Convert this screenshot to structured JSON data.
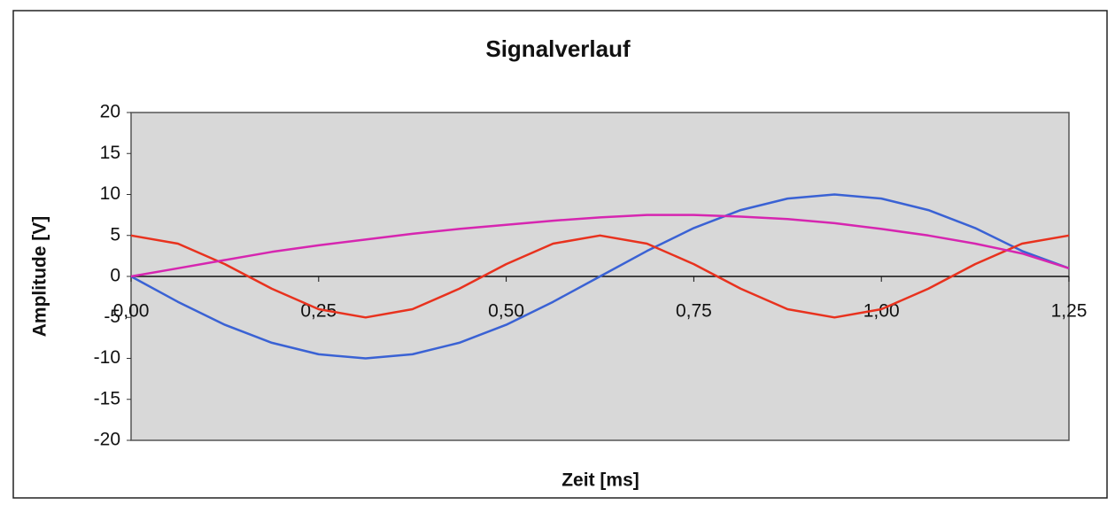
{
  "chart_data": {
    "type": "line",
    "title": "Signalverlauf",
    "x_label": "Zeit [ms]",
    "y_label": "Amplitude [V]",
    "x": [
      0,
      0.0625,
      0.125,
      0.1875,
      0.25,
      0.3125,
      0.375,
      0.4375,
      0.5,
      0.5625,
      0.625,
      0.6875,
      0.75,
      0.8125,
      0.875,
      0.9375,
      1.0,
      1.0625,
      1.125,
      1.1875,
      1.25
    ],
    "series": [
      {
        "color": "#3a62d4",
        "values": [
          0,
          -3.1,
          -5.9,
          -8.1,
          -9.5,
          -10,
          -9.5,
          -8.1,
          -5.9,
          -3.1,
          0,
          3.1,
          5.9,
          8.1,
          9.5,
          10,
          9.5,
          8.1,
          5.9,
          3.1,
          1
        ]
      },
      {
        "color": "#e8321e",
        "values": [
          5,
          4,
          1.5,
          -1.5,
          -4,
          -5,
          -4,
          -1.5,
          1.5,
          4,
          5,
          4,
          1.5,
          -1.5,
          -4,
          -5,
          -4,
          -1.5,
          1.5,
          4,
          5
        ]
      },
      {
        "color": "#d626b0",
        "values": [
          0,
          1,
          2,
          3,
          3.8,
          4.5,
          5.2,
          5.8,
          6.3,
          6.8,
          7.2,
          7.5,
          7.5,
          7.3,
          7,
          6.5,
          5.8,
          5,
          4,
          2.8,
          1
        ]
      }
    ],
    "xlim": [
      0,
      1.25
    ],
    "xticks": [
      {
        "value": 0,
        "label": "0,00"
      },
      {
        "value": 0.25,
        "label": "0,25"
      },
      {
        "value": 0.5,
        "label": "0,50"
      },
      {
        "value": 0.75,
        "label": "0,75"
      },
      {
        "value": 1.0,
        "label": "1,00"
      },
      {
        "value": 1.25,
        "label": "1,25"
      }
    ],
    "ylim": [
      -20,
      20
    ],
    "yticks": [
      -20,
      -15,
      -10,
      -5,
      0,
      5,
      10,
      15,
      20
    ],
    "grid": false
  }
}
